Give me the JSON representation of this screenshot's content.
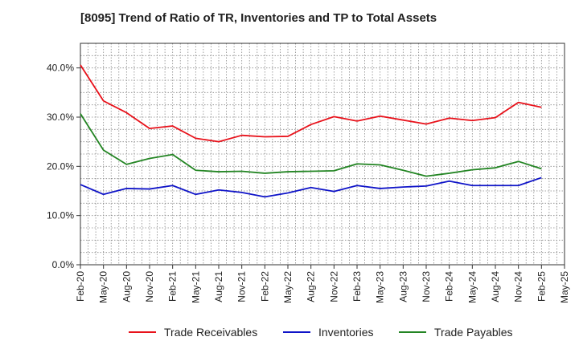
{
  "chart_data": {
    "type": "line",
    "title": "[8095]  Trend of Ratio of TR, Inventories and TP to Total Assets",
    "xlabel": "",
    "ylabel": "",
    "ylim": [
      0,
      45
    ],
    "y_ticks": [
      "0.0%",
      "10.0%",
      "20.0%",
      "30.0%",
      "40.0%"
    ],
    "y_tick_values": [
      0,
      10,
      20,
      30,
      40
    ],
    "x_tick_labels": [
      "Feb-20",
      "May-20",
      "Aug-20",
      "Nov-20",
      "Feb-21",
      "May-21",
      "Aug-21",
      "Nov-21",
      "Feb-22",
      "May-22",
      "Aug-22",
      "Nov-22",
      "Feb-23",
      "May-23",
      "Aug-23",
      "Nov-23",
      "Feb-24",
      "May-24",
      "Aug-24",
      "Nov-24",
      "Feb-25",
      "May-25"
    ],
    "x": [
      "Feb-20",
      "May-20",
      "Aug-20",
      "Nov-20",
      "Feb-21",
      "May-21",
      "Aug-21",
      "Nov-21",
      "Feb-22",
      "May-22",
      "Aug-22",
      "Nov-22",
      "Feb-23",
      "May-23",
      "Aug-23",
      "Nov-23",
      "Feb-24",
      "May-24",
      "Aug-24",
      "Nov-24",
      "Feb-25"
    ],
    "grid": true,
    "legend_position": "bottom",
    "series": [
      {
        "name": "Trade Receivables",
        "color": "#e8121b",
        "values": [
          40.6,
          33.3,
          30.9,
          27.7,
          28.2,
          25.7,
          25.0,
          26.3,
          26.0,
          26.1,
          28.5,
          30.1,
          29.2,
          30.2,
          29.4,
          28.6,
          29.8,
          29.3,
          29.9,
          33.0,
          32.0
        ]
      },
      {
        "name": "Inventories",
        "color": "#0f14c8",
        "values": [
          16.3,
          14.3,
          15.5,
          15.4,
          16.1,
          14.3,
          15.2,
          14.7,
          13.8,
          14.6,
          15.7,
          14.9,
          16.1,
          15.5,
          15.8,
          16.0,
          17.0,
          16.1,
          16.1,
          16.1,
          17.7
        ]
      },
      {
        "name": "Trade Payables",
        "color": "#238523",
        "values": [
          30.7,
          23.3,
          20.4,
          21.6,
          22.4,
          19.2,
          18.9,
          19.0,
          18.6,
          18.9,
          19.0,
          19.1,
          20.5,
          20.3,
          19.2,
          18.0,
          18.6,
          19.3,
          19.7,
          21.0,
          19.5
        ]
      }
    ]
  }
}
